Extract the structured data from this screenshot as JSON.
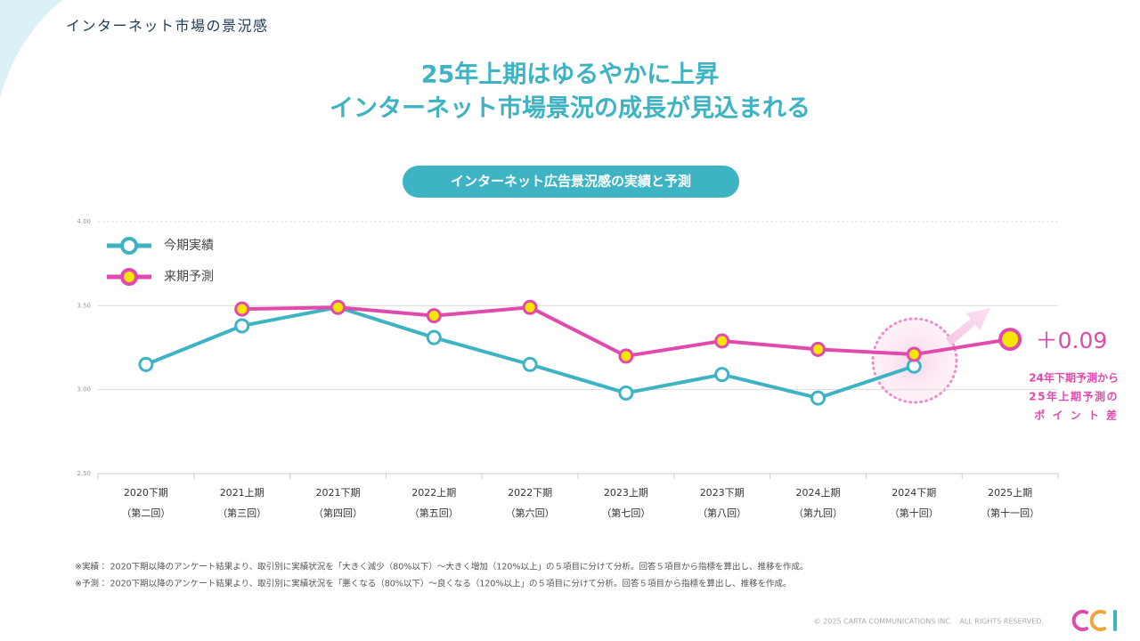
{
  "header": {
    "title": "インターネット市場の景況感"
  },
  "headline": [
    "25年上期はゆるやかに上昇",
    "インターネット市場景況の成長が見込まれる"
  ],
  "chart_data": {
    "type": "line",
    "title": "インターネット広告景況感の実績と予測",
    "categories": [
      "2020下期",
      "2021上期",
      "2021下期",
      "2022上期",
      "2022下期",
      "2023上期",
      "2023下期",
      "2024上期",
      "2024下期",
      "2025上期"
    ],
    "category_sublabels": [
      "（第二回）",
      "（第三回）",
      "（第四回）",
      "（第五回）",
      "（第六回）",
      "（第七回）",
      "（第八回）",
      "（第九回）",
      "（第十回）",
      "（第十一回）"
    ],
    "series": [
      {
        "name": "今期実績",
        "color": "#3db3c4",
        "values": [
          3.15,
          3.38,
          3.49,
          3.31,
          3.15,
          2.98,
          3.09,
          2.95,
          3.14,
          null
        ]
      },
      {
        "name": "来期予測",
        "color": "#e04aac",
        "values": [
          null,
          3.48,
          3.49,
          3.44,
          3.49,
          3.2,
          3.29,
          3.24,
          3.21,
          3.3
        ]
      }
    ],
    "ylim": [
      2.5,
      4.0
    ],
    "yticks": [
      {
        "value": 2.5,
        "label": "2.50"
      },
      {
        "value": 3.0,
        "label": "3.00"
      },
      {
        "value": 3.5,
        "label": "3.50"
      },
      {
        "value": 4.0,
        "label": "4.00"
      }
    ],
    "grid": true,
    "legend": "upper left",
    "annotation": {
      "text": "＋0.09",
      "note": [
        "24年下期予測から",
        "25年上期予測の",
        "ポ イ ン ト 差"
      ]
    }
  },
  "footnotes": [
    "※実績： 2020下期以降のアンケート結果より、取引別に実績状況を「大きく減少（80%以下）～大きく増加（120%以上」の５項目に分けて分析。回答５項目から指標を算出し、推移を作成。",
    "※予測： 2020下期以降のアンケート結果より、取引別に実績状況を「悪くなる（80%以下）～良くなる（120%以上」の５項目に分けて分析。回答５項目から指標を算出し、推移を作成。"
  ],
  "copyright": "© 2025 CARTA COMMUNICATIONS INC.　ALL RIGHTS RESERVED."
}
